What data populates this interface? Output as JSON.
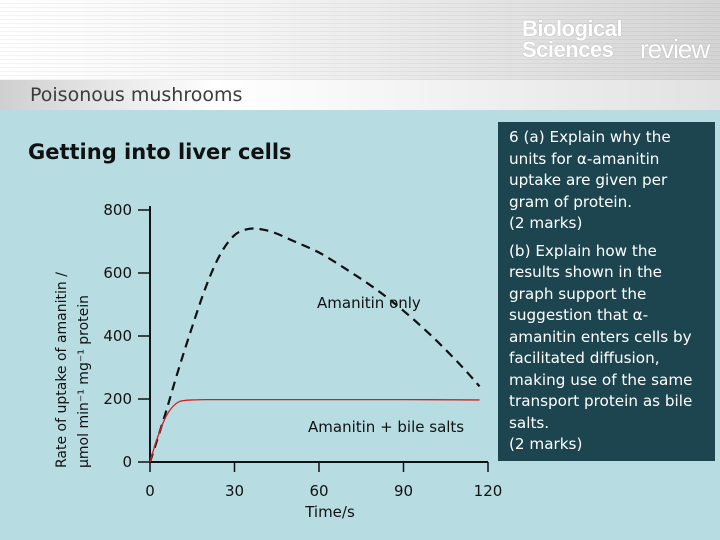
{
  "header": {
    "brand_line1": "Biological",
    "brand_line2": "Sciences",
    "brand_line3": "review",
    "subtitle": "Poisonous mushrooms"
  },
  "question": {
    "part_a": "6 (a) Explain why the units for α-amanitin uptake are given per gram of protein.\n(2 marks)",
    "part_b": "(b) Explain how the results shown in the graph support the suggestion that α-amanitin enters cells by facilitated diffusion, making use of the same transport protein as bile salts.\n(2 marks)"
  },
  "colors": {
    "background": "#b7dde3",
    "question_box": "#1d4550",
    "series_amanitin_only": "#111111",
    "series_amanitin_bile": "#d42020"
  },
  "chart_data": {
    "type": "line",
    "title": "Getting into liver cells",
    "xlabel": "Time/s",
    "ylabel_line1": "Rate of uptake of amanitin /",
    "ylabel_line2": "µmol min⁻¹ mg⁻¹ protein",
    "xlim": [
      0,
      120
    ],
    "ylim": [
      0,
      800
    ],
    "x_ticks": [
      0,
      30,
      60,
      90,
      120
    ],
    "y_ticks": [
      0,
      200,
      400,
      600,
      800
    ],
    "grid": false,
    "series": [
      {
        "name": "Amanitin only",
        "style": "dashed",
        "x": [
          0,
          5,
          10,
          15,
          20,
          25,
          30,
          35,
          40,
          45,
          50,
          60,
          70,
          80,
          90,
          100,
          110,
          117
        ],
        "y": [
          0,
          140,
          290,
          430,
          560,
          660,
          720,
          740,
          738,
          725,
          705,
          665,
          610,
          550,
          480,
          400,
          310,
          240
        ]
      },
      {
        "name": "Amanitin + bile salts",
        "style": "solid",
        "x": [
          0,
          2,
          4,
          6,
          8,
          10,
          12,
          15,
          20,
          30,
          60,
          90,
          117
        ],
        "y": [
          0,
          60,
          110,
          150,
          175,
          190,
          195,
          197,
          198,
          198,
          198,
          198,
          197
        ]
      }
    ]
  }
}
